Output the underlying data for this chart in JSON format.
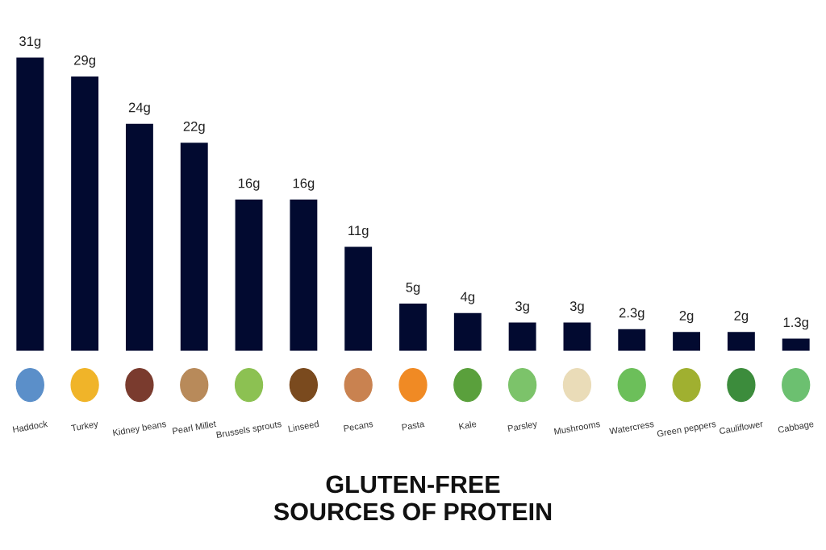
{
  "chart_data": {
    "type": "bar",
    "title": "GLUTEN-FREE\nSOURCES OF PROTEIN",
    "categories": [
      "Haddock",
      "Turkey",
      "Kidney beans",
      "Pearl Millet",
      "Brussels sprouts",
      "Linseed",
      "Pecans",
      "Pasta",
      "Kale",
      "Parsley",
      "Mushrooms",
      "Watercress",
      "Green peppers",
      "Cauliflower",
      "Cabbage"
    ],
    "values": [
      31,
      29,
      24,
      22,
      16,
      16,
      11,
      5,
      4,
      3,
      3,
      2.3,
      2,
      2,
      1.3
    ],
    "value_labels": [
      "31g",
      "29g",
      "24g",
      "22g",
      "16g",
      "16g",
      "11g",
      "5g",
      "4g",
      "3g",
      "3g",
      "2.3g",
      "2g",
      "2g",
      "1.3g"
    ],
    "color": "#020a30",
    "grid": false,
    "legend": false
  }
}
